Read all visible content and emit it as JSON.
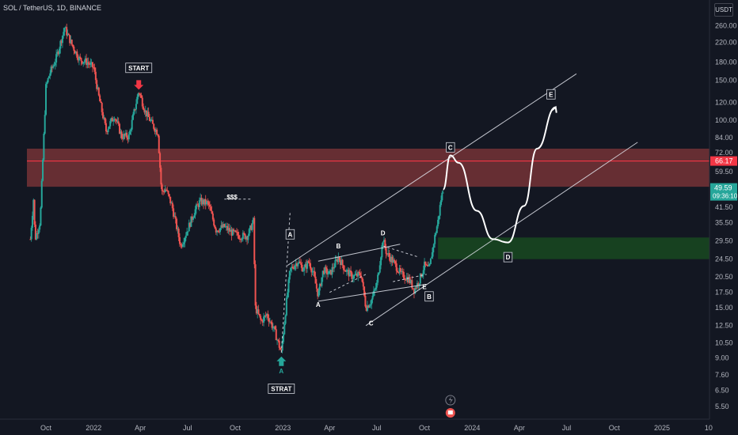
{
  "header": {
    "symbol_title": "SOL / TetherUS, 1D, BINANCE",
    "currency_label": "USDT"
  },
  "colors": {
    "up": "#26a69a",
    "down": "#ef5350",
    "resistance_zone": "#ef5350",
    "support_zone": "#1b5e20",
    "level_line": "#f23645",
    "trendline": "#e0e3eb",
    "projection": "#ffffff",
    "start_marker": "#f23645",
    "strat_marker": "#26a69a"
  },
  "chart_data": {
    "type": "candlestick",
    "y_scale": "log",
    "ylim": [
      5,
      300
    ],
    "y_ticks": [
      "260.00",
      "220.00",
      "180.00",
      "150.00",
      "120.00",
      "100.00",
      "84.00",
      "72.00",
      "59.50",
      "48.50",
      "41.50",
      "35.50",
      "29.50",
      "24.50",
      "20.50",
      "17.50",
      "15.00",
      "12.50",
      "10.50",
      "9.00",
      "7.60",
      "6.50",
      "5.50"
    ],
    "y_tick_values": [
      260,
      220,
      180,
      150,
      120,
      100,
      84,
      72,
      59.5,
      48.5,
      41.5,
      35.5,
      29.5,
      24.5,
      20.5,
      17.5,
      15,
      12.5,
      10.5,
      9,
      7.6,
      6.5,
      5.5
    ],
    "x_ticks": [
      "Oct",
      "2022",
      "Apr",
      "Jul",
      "Oct",
      "2023",
      "Apr",
      "Jul",
      "Oct",
      "2024",
      "Apr",
      "Jul",
      "Oct",
      "2025",
      "10"
    ],
    "x_tick_dates": [
      "2021-10-01",
      "2022-01-01",
      "2022-04-01",
      "2022-07-01",
      "2022-10-01",
      "2023-01-01",
      "2023-04-01",
      "2023-07-01",
      "2023-10-01",
      "2024-01-01",
      "2024-04-01",
      "2024-07-01",
      "2024-10-01",
      "2025-01-01",
      "2025-04-01"
    ],
    "price_path": [
      [
        "2021-09-01",
        30
      ],
      [
        "2021-09-07",
        45
      ],
      [
        "2021-09-10",
        30
      ],
      [
        "2021-09-20",
        36
      ],
      [
        "2021-10-01",
        140
      ],
      [
        "2021-10-08",
        160
      ],
      [
        "2021-10-20",
        185
      ],
      [
        "2021-11-06",
        255
      ],
      [
        "2021-11-20",
        215
      ],
      [
        "2021-12-05",
        185
      ],
      [
        "2021-12-20",
        180
      ],
      [
        "2022-01-01",
        170
      ],
      [
        "2022-01-10",
        130
      ],
      [
        "2022-01-25",
        90
      ],
      [
        "2022-02-10",
        105
      ],
      [
        "2022-02-24",
        85
      ],
      [
        "2022-03-10",
        85
      ],
      [
        "2022-03-29",
        135
      ],
      [
        "2022-04-10",
        110
      ],
      [
        "2022-04-25",
        95
      ],
      [
        "2022-05-05",
        88
      ],
      [
        "2022-05-12",
        48
      ],
      [
        "2022-05-20",
        50
      ],
      [
        "2022-06-01",
        42
      ],
      [
        "2022-06-18",
        28
      ],
      [
        "2022-07-01",
        33
      ],
      [
        "2022-07-15",
        40
      ],
      [
        "2022-07-25",
        44
      ],
      [
        "2022-08-10",
        43
      ],
      [
        "2022-08-25",
        33
      ],
      [
        "2022-09-10",
        34
      ],
      [
        "2022-09-25",
        32
      ],
      [
        "2022-10-10",
        31
      ],
      [
        "2022-10-25",
        31
      ],
      [
        "2022-11-05",
        36
      ],
      [
        "2022-11-09",
        15
      ],
      [
        "2022-11-20",
        13
      ],
      [
        "2022-12-01",
        14
      ],
      [
        "2022-12-15",
        12
      ],
      [
        "2022-12-29",
        9.5
      ],
      [
        "2023-01-08",
        16
      ],
      [
        "2023-01-15",
        22
      ],
      [
        "2023-01-30",
        24
      ],
      [
        "2023-02-10",
        22
      ],
      [
        "2023-02-20",
        24
      ],
      [
        "2023-03-01",
        21
      ],
      [
        "2023-03-10",
        17
      ],
      [
        "2023-03-20",
        22
      ],
      [
        "2023-04-01",
        21
      ],
      [
        "2023-04-18",
        25
      ],
      [
        "2023-05-01",
        22
      ],
      [
        "2023-05-15",
        20.5
      ],
      [
        "2023-06-01",
        21
      ],
      [
        "2023-06-10",
        15
      ],
      [
        "2023-06-20",
        16
      ],
      [
        "2023-07-01",
        19
      ],
      [
        "2023-07-13",
        30
      ],
      [
        "2023-07-20",
        26
      ],
      [
        "2023-08-01",
        24
      ],
      [
        "2023-08-17",
        21
      ],
      [
        "2023-09-01",
        20
      ],
      [
        "2023-09-11",
        18
      ],
      [
        "2023-09-20",
        19.5
      ],
      [
        "2023-10-01",
        23
      ],
      [
        "2023-10-10",
        22
      ],
      [
        "2023-10-20",
        30
      ],
      [
        "2023-10-27",
        36
      ],
      [
        "2023-11-02",
        45
      ],
      [
        "2023-11-06",
        49.59
      ]
    ],
    "current_price": "49.59",
    "countdown": "09:36:10",
    "horizontal_level": "66.17",
    "resistance_zone": [
      51,
      75
    ],
    "support_zone": [
      24.5,
      30.5
    ],
    "projection_path": [
      [
        "2023-11-06",
        49.59
      ],
      [
        "2023-11-20",
        70
      ],
      [
        "2023-12-06",
        65
      ],
      [
        "2024-01-10",
        40
      ],
      [
        "2024-02-10",
        30
      ],
      [
        "2024-03-10",
        29
      ],
      [
        "2024-04-10",
        42
      ],
      [
        "2024-05-05",
        75
      ],
      [
        "2024-06-10",
        114
      ]
    ],
    "annotations": [
      {
        "text": "START",
        "date": "2022-03-29",
        "price": 170,
        "style": "box"
      },
      {
        "text": "$$$",
        "date": "2022-09-25",
        "price": 46,
        "style": "plain"
      },
      {
        "text": "A",
        "date": "2022-12-29",
        "price": 7.9,
        "style": "plain-large",
        "color": "#26a69a"
      },
      {
        "text": "STRAT",
        "date": "2022-12-29",
        "price": 6.6,
        "style": "box"
      },
      {
        "text": "A",
        "date": "2023-01-15",
        "price": 31.5,
        "style": "box"
      },
      {
        "text": "B",
        "date": "2023-04-18",
        "price": 28,
        "style": "plain"
      },
      {
        "text": "A",
        "date": "2023-03-10",
        "price": 15.5,
        "style": "plain"
      },
      {
        "text": "D",
        "date": "2023-07-13",
        "price": 32,
        "style": "plain"
      },
      {
        "text": "C",
        "date": "2023-06-20",
        "price": 12.8,
        "style": "plain"
      },
      {
        "text": "E",
        "date": "2023-10-01",
        "price": 18.5,
        "style": "plain"
      },
      {
        "text": "B",
        "date": "2023-10-10",
        "price": 16.8,
        "style": "box"
      },
      {
        "text": "C",
        "date": "2023-11-20",
        "price": 76,
        "style": "box"
      },
      {
        "text": "D",
        "date": "2024-03-10",
        "price": 25,
        "style": "box"
      },
      {
        "text": "E",
        "date": "2024-06-01",
        "price": 130,
        "style": "box"
      }
    ],
    "trendlines": [
      {
        "from": [
          "2023-01-10",
          23
        ],
        "to": [
          "2024-07-20",
          160
        ],
        "style": "solid"
      },
      {
        "from": [
          "2023-06-10",
          12.5
        ],
        "to": [
          "2024-11-15",
          80
        ],
        "style": "solid"
      },
      {
        "from": [
          "2023-03-10",
          16
        ],
        "to": [
          "2023-10-05",
          19
        ],
        "style": "solid"
      },
      {
        "from": [
          "2023-03-10",
          24
        ],
        "to": [
          "2023-08-15",
          28.5
        ],
        "style": "solid"
      },
      {
        "from": [
          "2022-12-29",
          9.5
        ],
        "to": [
          "2023-01-15",
          40
        ],
        "style": "dashed"
      },
      {
        "from": [
          "2022-09-10",
          45
        ],
        "to": [
          "2022-11-03",
          45
        ],
        "style": "dashed"
      },
      {
        "from": [
          "2023-04-01",
          17.5
        ],
        "to": [
          "2023-06-10",
          21
        ],
        "style": "dashed"
      },
      {
        "from": [
          "2023-07-13",
          28
        ],
        "to": [
          "2023-09-20",
          25
        ],
        "style": "dashed"
      },
      {
        "from": [
          "2023-08-01",
          19.5
        ],
        "to": [
          "2023-10-05",
          21
        ],
        "style": "dashed"
      }
    ]
  },
  "footer_icons": [
    "lightning-icon",
    "earnings-flag-icon"
  ]
}
